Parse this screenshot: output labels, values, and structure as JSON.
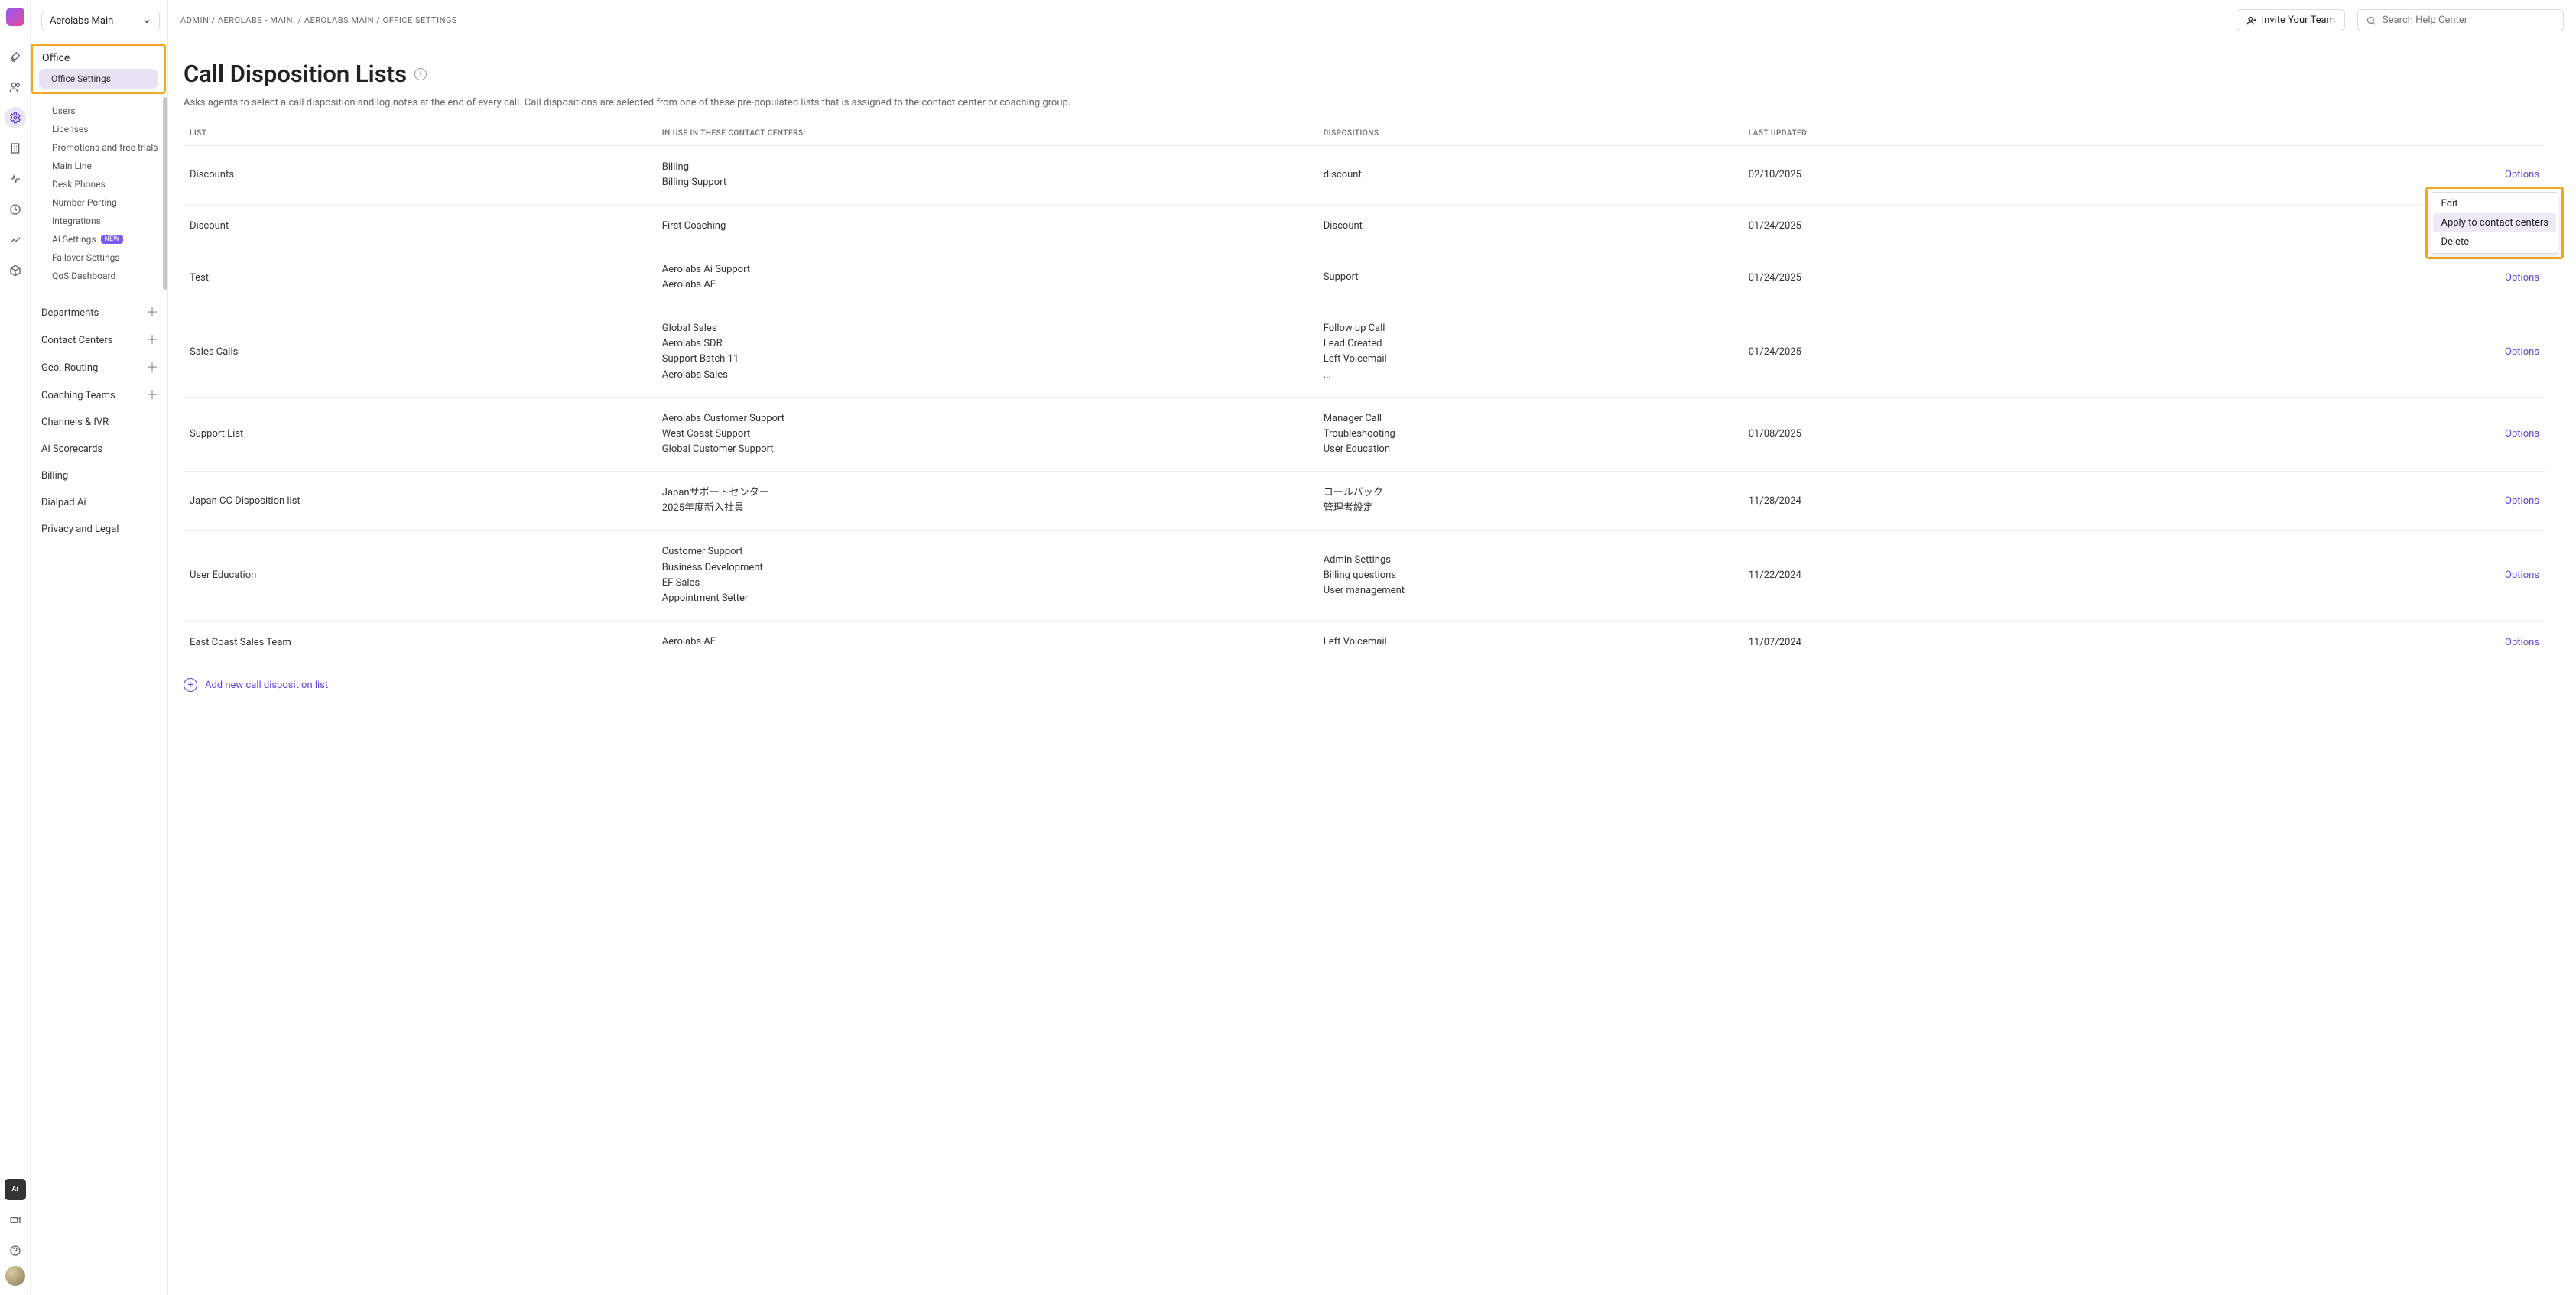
{
  "org_selector": {
    "label": "Aerolabs Main"
  },
  "breadcrumb": [
    "ADMIN",
    "AEROLABS - MAIN.",
    "AEROLABS MAIN",
    "OFFICE SETTINGS"
  ],
  "topbar": {
    "invite_label": "Invite Your Team",
    "search_placeholder": "Search Help Center"
  },
  "sidebar": {
    "office_heading": "Office",
    "office_settings": "Office Settings",
    "office_items": [
      "Users",
      "Licenses",
      "Promotions and free trials",
      "Main Line",
      "Desk Phones",
      "Number Porting",
      "Integrations"
    ],
    "ai_settings_label": "Ai Settings",
    "ai_settings_badge": "NEW",
    "office_items_after": [
      "Failover Settings",
      "QoS Dashboard"
    ],
    "sections": [
      "Departments",
      "Contact Centers",
      "Geo. Routing",
      "Coaching Teams",
      "Channels & IVR",
      "Ai Scorecards",
      "Billing",
      "Dialpad Ai",
      "Privacy and Legal"
    ]
  },
  "page": {
    "title": "Call Disposition Lists",
    "description": "Asks agents to select a call disposition and log notes at the end of every call. Call dispositions are selected from one of these pre-populated lists that is assigned to the contact center or coaching group."
  },
  "table": {
    "headers": {
      "list": "LIST",
      "centers": "IN USE IN THESE CONTACT CENTERS:",
      "dispositions": "DISPOSITIONS",
      "updated": "LAST UPDATED"
    },
    "options_label": "Options",
    "rows": [
      {
        "list": "Discounts",
        "centers": [
          "Billing",
          "Billing Support"
        ],
        "dispositions": [
          "discount"
        ],
        "updated": "02/10/2025"
      },
      {
        "list": "Discount",
        "centers": [
          "First Coaching"
        ],
        "dispositions": [
          "Discount"
        ],
        "updated": "01/24/2025"
      },
      {
        "list": "Test",
        "centers": [
          "Aerolabs Ai Support",
          "Aerolabs AE"
        ],
        "dispositions": [
          "Support"
        ],
        "updated": "01/24/2025"
      },
      {
        "list": "Sales Calls",
        "centers": [
          "Global Sales",
          "Aerolabs SDR",
          "Support Batch 11",
          "Aerolabs Sales"
        ],
        "dispositions": [
          "Follow up Call",
          "Lead Created",
          "Left Voicemail",
          "..."
        ],
        "updated": "01/24/2025"
      },
      {
        "list": "Support List",
        "centers": [
          "Aerolabs Customer Support",
          "West Coast Support",
          "Global Customer Support"
        ],
        "dispositions": [
          "Manager Call",
          "Troubleshooting",
          "User Education"
        ],
        "updated": "01/08/2025"
      },
      {
        "list": "Japan CC Disposition list",
        "centers": [
          "Japanサポートセンター",
          "2025年度新入社員"
        ],
        "dispositions": [
          "コールバック",
          "管理者設定"
        ],
        "updated": "11/28/2024"
      },
      {
        "list": "User Education",
        "centers": [
          "Customer Support",
          "Business Development",
          "EF Sales",
          "Appointment Setter"
        ],
        "dispositions": [
          "Admin Settings",
          "Billing questions",
          "User management"
        ],
        "updated": "11/22/2024"
      },
      {
        "list": "East Coast Sales Team",
        "centers": [
          "Aerolabs AE"
        ],
        "dispositions": [
          "Left Voicemail"
        ],
        "updated": "11/07/2024"
      }
    ]
  },
  "add_row_label": "Add new call disposition list",
  "context_menu": {
    "edit": "Edit",
    "apply": "Apply to contact centers",
    "delete": "Delete"
  },
  "colors": {
    "accent": "#6341e0",
    "highlight_border": "#f5a623",
    "text_muted": "#666666",
    "border": "#eeeeee"
  }
}
